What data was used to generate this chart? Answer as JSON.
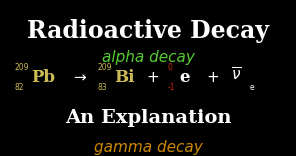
{
  "bg_color": "#000000",
  "title": "Radioactive Decay",
  "title_color": "#ffffff",
  "title_fontsize": 17,
  "subtitle1": "alpha decay",
  "subtitle1_color": "#55cc33",
  "subtitle1_fontsize": 11,
  "subtitle2": "An Explanation",
  "subtitle2_color": "#ffffff",
  "subtitle2_fontsize": 14,
  "subtitle3": "gamma decay",
  "subtitle3_color": "#cc8800",
  "subtitle3_fontsize": 11,
  "pb_mass": "209",
  "pb_atomic": "82",
  "pb_symbol": "Pb",
  "bi_mass": "209",
  "bi_atomic": "83",
  "bi_symbol": "Bi",
  "e_top": "0",
  "e_bottom": "-1",
  "e_symbol": "e",
  "nu_sub": "e",
  "element_color": "#ccbb55",
  "red_color": "#cc2200",
  "white_color": "#ffffff"
}
